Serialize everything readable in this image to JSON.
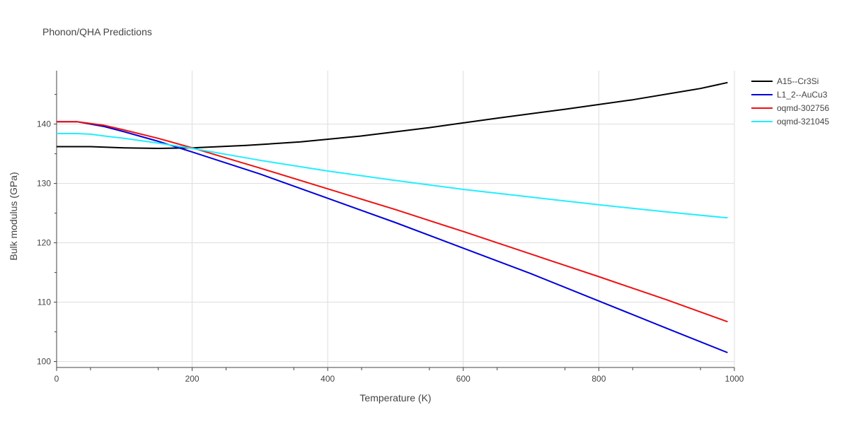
{
  "chart_data": {
    "type": "line",
    "title": "Phonon/QHA Predictions",
    "xlabel": "Temperature (K)",
    "ylabel": "Bulk modulus (GPa)",
    "xlim": [
      0,
      1000
    ],
    "ylim": [
      99,
      149
    ],
    "xticks": [
      0,
      200,
      400,
      600,
      800,
      1000
    ],
    "yticks": [
      100,
      110,
      120,
      130,
      140
    ],
    "grid": true,
    "legend_position": "top-right",
    "series": [
      {
        "name": "A15--Cr3Si",
        "color": "#000000",
        "x": [
          0,
          50,
          100,
          150,
          200,
          280,
          360,
          450,
          550,
          650,
          750,
          850,
          950,
          990
        ],
        "y": [
          136.2,
          136.2,
          136.0,
          135.9,
          136.0,
          136.4,
          137.0,
          138.0,
          139.4,
          141.0,
          142.5,
          144.1,
          146.0,
          147.0
        ]
      },
      {
        "name": "L1_2--AuCu3",
        "color": "#0000dd",
        "x": [
          0,
          30,
          50,
          70,
          100,
          150,
          200,
          300,
          400,
          500,
          600,
          700,
          800,
          900,
          990
        ],
        "y": [
          140.4,
          140.4,
          140.0,
          139.6,
          138.7,
          137.1,
          135.3,
          131.6,
          127.5,
          123.4,
          119.1,
          114.8,
          110.2,
          105.6,
          101.5
        ]
      },
      {
        "name": "oqmd-302756",
        "color": "#ee1111",
        "x": [
          0,
          30,
          50,
          70,
          100,
          150,
          200,
          300,
          400,
          500,
          600,
          700,
          800,
          900,
          990
        ],
        "y": [
          140.4,
          140.4,
          140.1,
          139.8,
          139.0,
          137.6,
          136.0,
          132.6,
          129.1,
          125.6,
          121.9,
          118.1,
          114.3,
          110.4,
          106.7
        ]
      },
      {
        "name": "oqmd-321045",
        "color": "#22eeff",
        "x": [
          0,
          30,
          50,
          70,
          100,
          150,
          200,
          300,
          400,
          500,
          600,
          700,
          800,
          900,
          990
        ],
        "y": [
          138.4,
          138.4,
          138.3,
          138.0,
          137.6,
          136.8,
          135.9,
          133.9,
          132.1,
          130.5,
          129.0,
          127.7,
          126.4,
          125.2,
          124.2
        ]
      }
    ]
  }
}
